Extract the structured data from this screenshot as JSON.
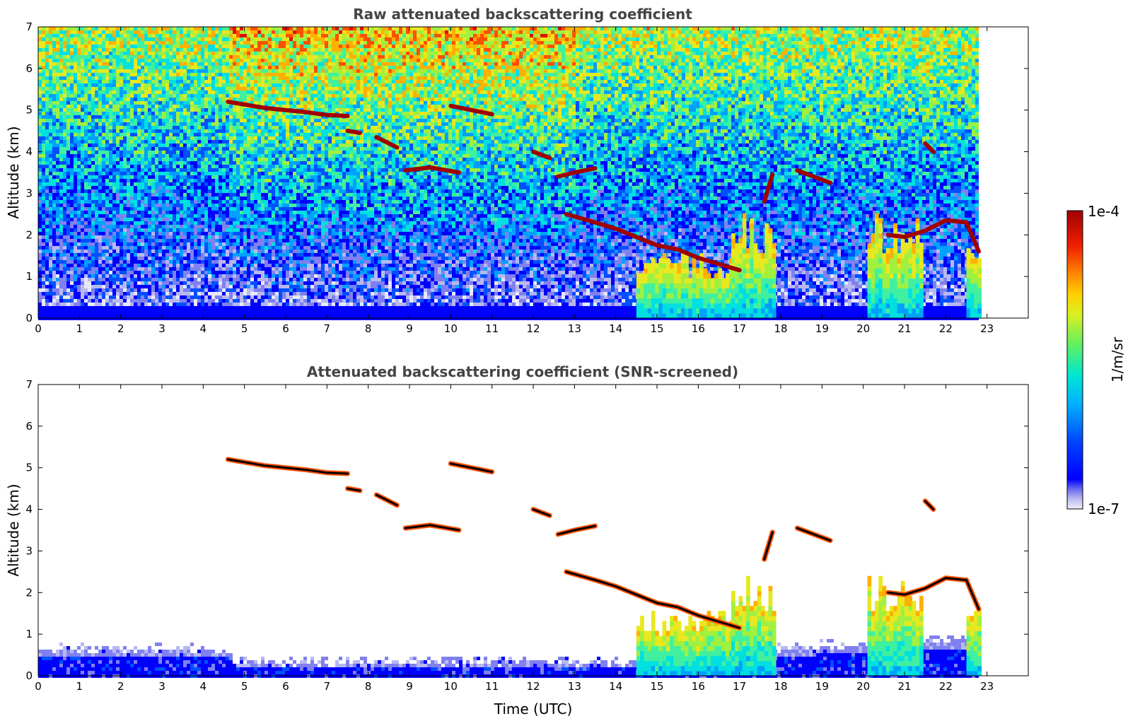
{
  "chart_data": [
    {
      "type": "heatmap",
      "title": "Raw attenuated backscattering coefficient",
      "xlabel": "",
      "ylabel": "Altitude (km)",
      "xlim": [
        0,
        24
      ],
      "ylim": [
        0,
        7
      ],
      "x_ticks": [
        "0",
        "1",
        "2",
        "3",
        "4",
        "5",
        "6",
        "7",
        "8",
        "9",
        "10",
        "11",
        "12",
        "13",
        "14",
        "15",
        "16",
        "17",
        "18",
        "19",
        "20",
        "21",
        "22",
        "23"
      ],
      "y_ticks": [
        "0",
        "1",
        "2",
        "3",
        "4",
        "5",
        "6",
        "7"
      ],
      "data_extent_x": [
        0,
        22.8
      ],
      "screened": false,
      "cloud_layers": [
        {
          "x": [
            4.6,
            5.5,
            6.5,
            7.0,
            7.5
          ],
          "y": [
            5.2,
            5.05,
            4.95,
            4.88,
            4.86
          ]
        },
        {
          "x": [
            7.5,
            7.8
          ],
          "y": [
            4.5,
            4.45
          ]
        },
        {
          "x": [
            8.2,
            8.7
          ],
          "y": [
            4.35,
            4.1
          ]
        },
        {
          "x": [
            8.9,
            9.5,
            10.2
          ],
          "y": [
            3.55,
            3.62,
            3.5
          ]
        },
        {
          "x": [
            10.0,
            10.5,
            11.0
          ],
          "y": [
            5.1,
            5.0,
            4.9
          ]
        },
        {
          "x": [
            12.0,
            12.4
          ],
          "y": [
            4.0,
            3.85
          ]
        },
        {
          "x": [
            12.6,
            13.0,
            13.5
          ],
          "y": [
            3.4,
            3.5,
            3.6
          ]
        },
        {
          "x": [
            12.8,
            13.5,
            14.0,
            14.5,
            15.0,
            15.5,
            16.0,
            16.5,
            17.0
          ],
          "y": [
            2.5,
            2.3,
            2.15,
            1.95,
            1.75,
            1.65,
            1.45,
            1.3,
            1.15
          ]
        },
        {
          "x": [
            17.6,
            17.8
          ],
          "y": [
            2.8,
            3.45
          ]
        },
        {
          "x": [
            18.4,
            18.8,
            19.2
          ],
          "y": [
            3.55,
            3.4,
            3.25
          ]
        },
        {
          "x": [
            20.6,
            21.0,
            21.5,
            22.0,
            22.5,
            22.8
          ],
          "y": [
            2.0,
            1.95,
            2.1,
            2.35,
            2.3,
            1.6
          ]
        },
        {
          "x": [
            21.5,
            21.7
          ],
          "y": [
            4.2,
            4.0
          ]
        }
      ],
      "precipitation_columns": [
        {
          "x": [
            14.5,
            17.3
          ],
          "top": 1.5
        },
        {
          "x": [
            16.8,
            17.8
          ],
          "top": 2.3
        },
        {
          "x": [
            20.1,
            21.4
          ],
          "top": 2.4
        },
        {
          "x": [
            22.5,
            22.8
          ],
          "top": 1.8
        }
      ]
    },
    {
      "type": "heatmap",
      "title": "Attenuated backscattering coefficient (SNR-screened)",
      "xlabel": "Time (UTC)",
      "ylabel": "Altitude (km)",
      "xlim": [
        0,
        24
      ],
      "ylim": [
        0,
        7
      ],
      "x_ticks": [
        "0",
        "1",
        "2",
        "3",
        "4",
        "5",
        "6",
        "7",
        "8",
        "9",
        "10",
        "11",
        "12",
        "13",
        "14",
        "15",
        "16",
        "17",
        "18",
        "19",
        "20",
        "21",
        "22",
        "23"
      ],
      "y_ticks": [
        "0",
        "1",
        "2",
        "3",
        "4",
        "5",
        "6",
        "7"
      ],
      "data_extent_x": [
        0,
        22.8
      ],
      "screened": true,
      "boundary_layer_top": [
        {
          "x": 0,
          "y": 0.7
        },
        {
          "x": 4.6,
          "y": 0.7
        },
        {
          "x": 4.7,
          "y": 0.4
        },
        {
          "x": 14.5,
          "y": 0.4
        },
        {
          "x": 17.5,
          "y": 0.7
        },
        {
          "x": 22.8,
          "y": 1.0
        }
      ]
    }
  ],
  "colorbar": {
    "label": "1/m/sr",
    "max_label": "1e-4",
    "min_label": "1e-7",
    "scale": "log",
    "range": [
      1e-07,
      0.0001
    ],
    "colors": [
      "#e8e8f8",
      "#b8b8f0",
      "#8080f0",
      "#0000ff",
      "#0050ff",
      "#00a0ff",
      "#00e0e0",
      "#40f0a0",
      "#a0f040",
      "#e8e820",
      "#ffb000",
      "#ff5000",
      "#e01000",
      "#a00000"
    ]
  }
}
